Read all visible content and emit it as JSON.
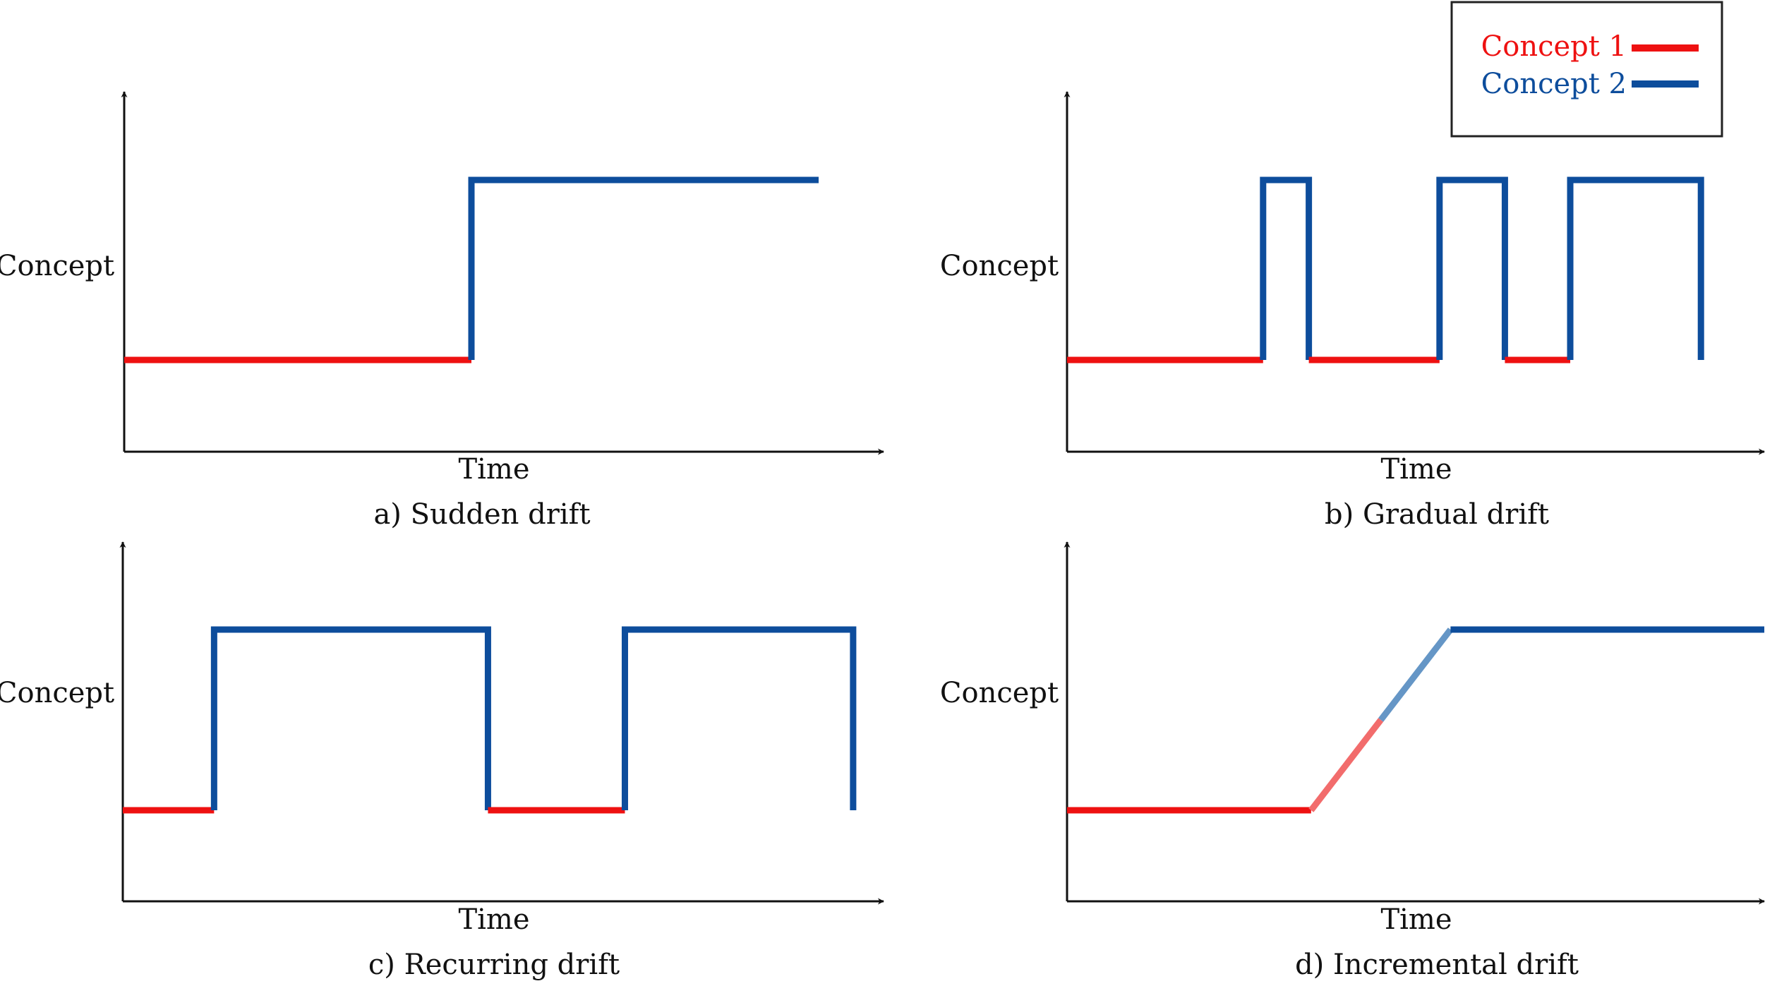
{
  "legend": {
    "items": [
      {
        "label": "Concept 1",
        "color": "#ee1111"
      },
      {
        "label": "Concept 2",
        "color": "#0d4d9c"
      }
    ]
  },
  "colors": {
    "concept1": "#ee1111",
    "concept2": "#0d4d9c",
    "concept1_light": "#f26c6c",
    "concept2_light": "#6596c6",
    "axis": "#111111"
  },
  "panels": [
    {
      "id": "a",
      "caption": "a) Sudden drift",
      "ylabel": "Concept",
      "xlabel": "Time",
      "profile": "sudden",
      "segments": [
        {
          "concept": 1,
          "t": [
            0,
            0.5
          ]
        },
        {
          "concept": 2,
          "t": [
            0.5,
            1
          ]
        }
      ]
    },
    {
      "id": "b",
      "caption": "b) Gradual drift",
      "ylabel": "Concept",
      "xlabel": "Time",
      "profile": "gradual",
      "segments": [
        {
          "concept": 1,
          "t": [
            0,
            0.3
          ]
        },
        {
          "concept": 2,
          "t": [
            0.3,
            0.37
          ]
        },
        {
          "concept": 1,
          "t": [
            0.37,
            0.57
          ]
        },
        {
          "concept": 2,
          "t": [
            0.57,
            0.67
          ]
        },
        {
          "concept": 1,
          "t": [
            0.67,
            0.77
          ]
        },
        {
          "concept": 2,
          "t": [
            0.77,
            0.97
          ]
        }
      ]
    },
    {
      "id": "c",
      "caption": "c) Recurring drift",
      "ylabel": "Concept",
      "xlabel": "Time",
      "profile": "recurring",
      "segments": [
        {
          "concept": 1,
          "t": [
            0,
            0.12
          ]
        },
        {
          "concept": 2,
          "t": [
            0.12,
            0.48
          ]
        },
        {
          "concept": 1,
          "t": [
            0.48,
            0.66
          ]
        },
        {
          "concept": 2,
          "t": [
            0.66,
            0.96
          ]
        }
      ]
    },
    {
      "id": "d",
      "caption": "d) Incremental drift",
      "ylabel": "Concept",
      "xlabel": "Time",
      "profile": "incremental",
      "segments": [
        {
          "concept": 1,
          "t": [
            0,
            0.35
          ]
        },
        {
          "concept": "transition",
          "t": [
            0.35,
            0.55
          ]
        },
        {
          "concept": 2,
          "t": [
            0.55,
            1
          ]
        }
      ]
    }
  ]
}
